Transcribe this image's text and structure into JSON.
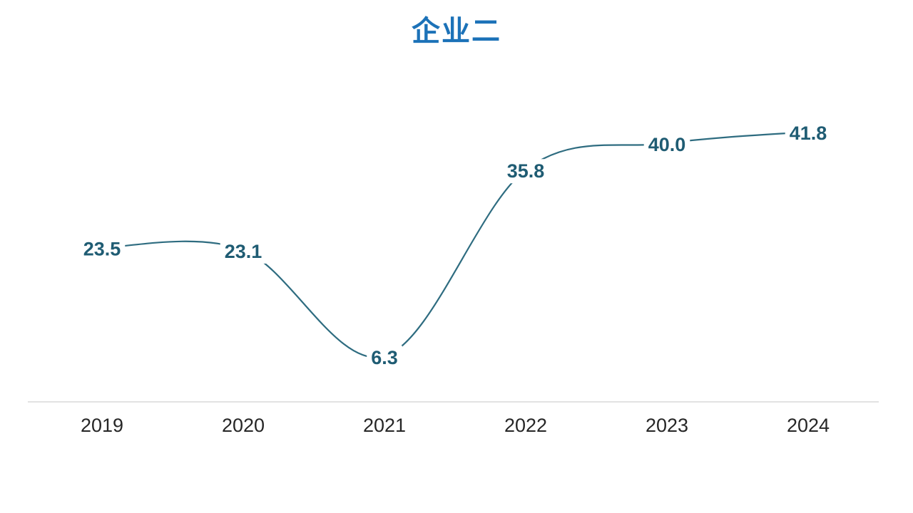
{
  "page": {
    "background_color": "#ffffff"
  },
  "chart_data": {
    "type": "line",
    "title": "企业二",
    "series": [
      {
        "name": "企业二",
        "values": [
          23.5,
          23.1,
          6.3,
          35.8,
          40.0,
          41.8
        ]
      }
    ],
    "categories": [
      "2019",
      "2020",
      "2021",
      "2022",
      "2023",
      "2024"
    ],
    "data_labels": [
      "23.5",
      "23.1",
      "6.3",
      "35.8",
      "40.0",
      "41.8"
    ],
    "data_label_position": "center-on-point",
    "smooth": true,
    "grid": false,
    "legend_position": "none",
    "y_axis_visible": false,
    "x_axis_visible": true,
    "colors": {
      "title": "#1C72B8",
      "line": "#2E6C80",
      "data_label": "#1F5C73",
      "axis_line": "#D9D9D9",
      "tick_label": "#262626"
    }
  }
}
